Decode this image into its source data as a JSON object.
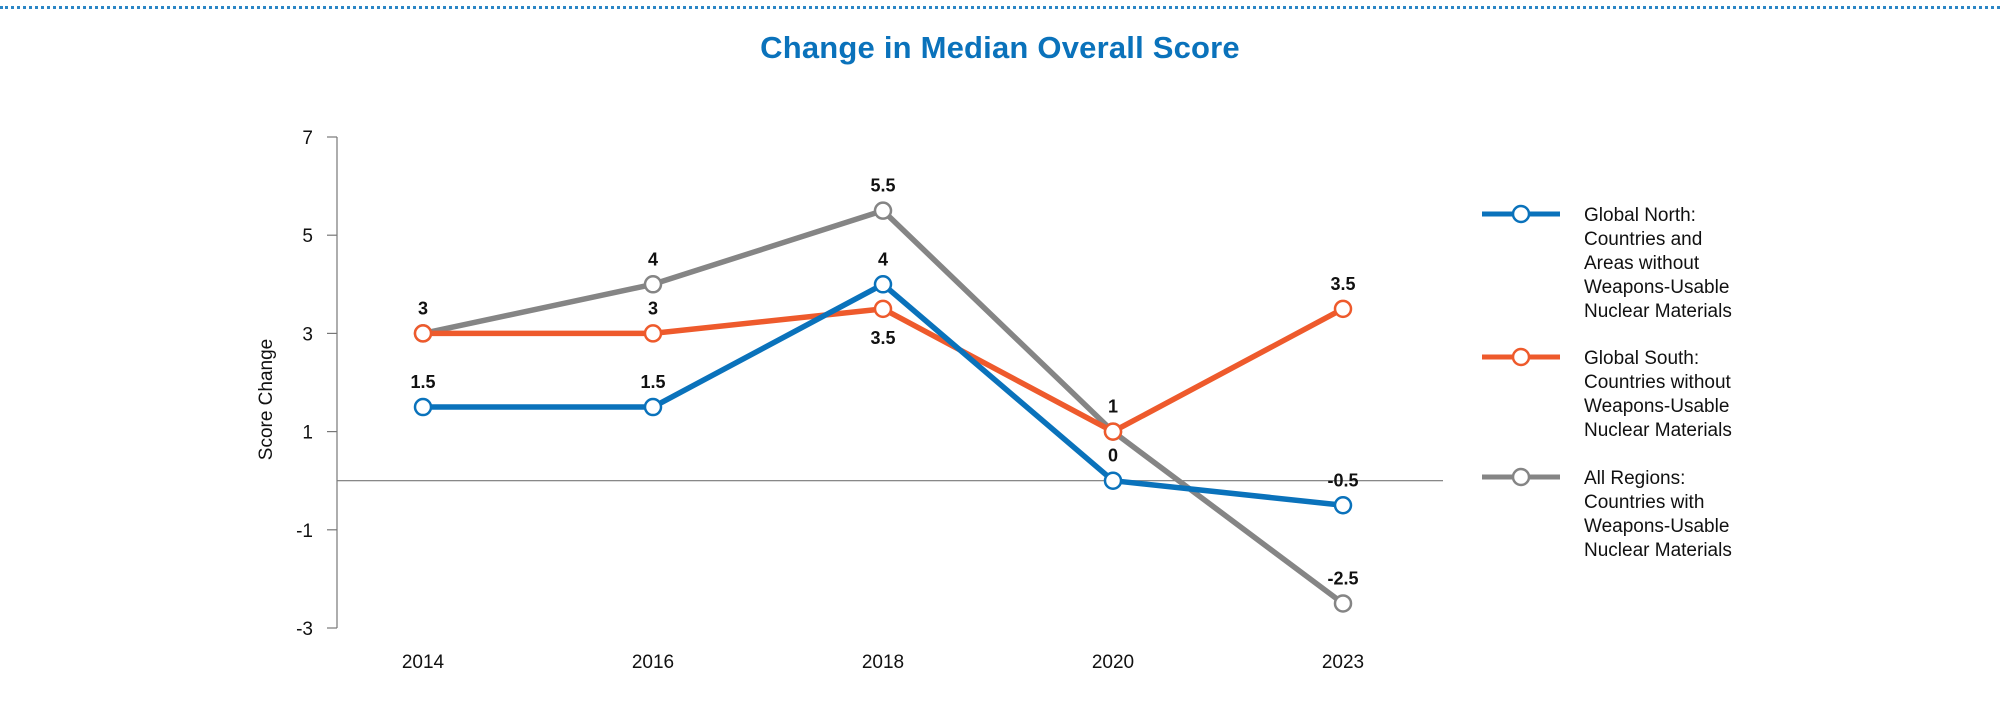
{
  "chart_data": {
    "type": "line",
    "title": "Change in Median Overall Score",
    "ylabel": "Score Change",
    "xlabel": "",
    "categories": [
      "2014",
      "2016",
      "2018",
      "2020",
      "2023"
    ],
    "ylim": [
      -3,
      7
    ],
    "yticks": [
      7,
      5,
      3,
      1,
      -1,
      -3
    ],
    "zero_line": true,
    "legend_position": "right",
    "series": [
      {
        "name": "Global North: Countries and Areas without Weapons-Usable Nuclear Materials",
        "legend_lines": [
          "Global North:",
          "Countries and",
          "Areas without",
          "Weapons-Usable",
          "Nuclear Materials"
        ],
        "color": "#0a72bb",
        "values": [
          1.5,
          1.5,
          4,
          0,
          -0.5
        ],
        "labels": [
          "1.5",
          "1.5",
          "4",
          "0",
          "-0.5"
        ],
        "label_pos": [
          "above",
          "above",
          "above",
          "above",
          "above"
        ]
      },
      {
        "name": "Global South: Countries without Weapons-Usable Nuclear Materials",
        "legend_lines": [
          "Global South:",
          "Countries without",
          "Weapons-Usable",
          "Nuclear Materials"
        ],
        "color": "#ee5a2c",
        "values": [
          3,
          3,
          3.5,
          1,
          3.5
        ],
        "labels": [
          "3",
          "3",
          "3.5",
          "1",
          "3.5"
        ],
        "label_pos": [
          "above",
          "above",
          "below",
          "above",
          "above"
        ]
      },
      {
        "name": "All Regions: Countries with Weapons-Usable Nuclear Materials",
        "legend_lines": [
          "All Regions:",
          "Countries with",
          "Weapons-Usable",
          "Nuclear Materials"
        ],
        "color": "#858585",
        "values": [
          3,
          4,
          5.5,
          1,
          -2.5
        ],
        "labels": [
          "",
          "4",
          "5.5",
          "",
          "-2.5"
        ],
        "label_pos": [
          "above",
          "above",
          "above",
          "above",
          "above"
        ]
      }
    ]
  }
}
